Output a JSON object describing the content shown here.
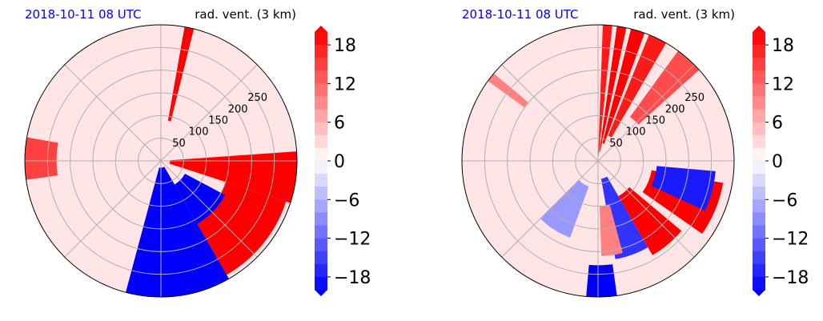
{
  "chart_data": [
    {
      "type": "heatmap",
      "projection": "polar",
      "title_left": "2018-10-11 08 UTC",
      "title_right": "rad. vent. (3 km)",
      "title_left_color": "#0000ff",
      "range_ticks": [
        "50",
        "100",
        "150",
        "200",
        "250"
      ],
      "range_values": [
        50,
        100,
        150,
        200,
        250
      ],
      "range_max": 300,
      "colorbar": {
        "ticks": [
          "18",
          "12",
          "6",
          "0",
          "−6",
          "−12",
          "−18"
        ],
        "tick_values": [
          18,
          12,
          6,
          0,
          -6,
          -12,
          -18
        ],
        "vmin": -20,
        "vmax": 20,
        "extend": "both",
        "colormap": "bwr"
      },
      "grid": true,
      "features": [
        {
          "kind": "band",
          "value": 20,
          "az": [
            10,
            12
          ],
          "r": [
            90,
            300
          ]
        },
        {
          "kind": "band",
          "value": 20,
          "az": [
            12,
            14
          ],
          "r": [
            90,
            300
          ]
        },
        {
          "kind": "sector",
          "value": 20,
          "az": [
            86,
            108
          ],
          "r": [
            20,
            300
          ]
        },
        {
          "kind": "sector",
          "value": 20,
          "az": [
            108,
            150
          ],
          "r": [
            150,
            290
          ]
        },
        {
          "kind": "sector",
          "value": -20,
          "az": [
            150,
            195
          ],
          "r": [
            15,
            300
          ]
        },
        {
          "kind": "sector",
          "value": -20,
          "az": [
            118,
            150
          ],
          "r": [
            60,
            160
          ]
        },
        {
          "kind": "sector",
          "value": 15,
          "az": [
            262,
            280
          ],
          "r": [
            230,
            300
          ]
        }
      ]
    },
    {
      "type": "heatmap",
      "projection": "polar",
      "title_left": "2018-10-11 08 UTC",
      "title_right": "rad. vent. (3 km)",
      "title_left_color": "#0000ff",
      "range_ticks": [
        "50",
        "100",
        "150",
        "200",
        "250"
      ],
      "range_values": [
        50,
        100,
        150,
        200,
        250
      ],
      "range_max": 300,
      "colorbar": {
        "ticks": [
          "18",
          "12",
          "6",
          "0",
          "−6",
          "−12",
          "−18"
        ],
        "tick_values": [
          18,
          12,
          6,
          0,
          -6,
          -12,
          -18
        ],
        "vmin": -20,
        "vmax": 20,
        "extend": "both",
        "colormap": "bwr"
      },
      "grid": true,
      "features": [
        {
          "kind": "band",
          "value": 18,
          "az": [
            2,
            6
          ],
          "r": [
            10,
            300
          ]
        },
        {
          "kind": "band",
          "value": 20,
          "az": [
            8,
            12
          ],
          "r": [
            20,
            300
          ]
        },
        {
          "kind": "band",
          "value": 20,
          "az": [
            14,
            20
          ],
          "r": [
            40,
            300
          ]
        },
        {
          "kind": "band",
          "value": 18,
          "az": [
            22,
            30
          ],
          "r": [
            60,
            300
          ]
        },
        {
          "kind": "band",
          "value": 14,
          "az": [
            36,
            48
          ],
          "r": [
            120,
            300
          ]
        },
        {
          "kind": "sector",
          "value": 20,
          "az": [
            100,
            125
          ],
          "r": [
            120,
            280
          ]
        },
        {
          "kind": "sector",
          "value": -18,
          "az": [
            95,
            115
          ],
          "r": [
            130,
            260
          ]
        },
        {
          "kind": "sector",
          "value": 20,
          "az": [
            130,
            150
          ],
          "r": [
            90,
            240
          ]
        },
        {
          "kind": "sector",
          "value": -16,
          "az": [
            150,
            170
          ],
          "r": [
            40,
            220
          ]
        },
        {
          "kind": "sector",
          "value": 10,
          "az": [
            165,
            178
          ],
          "r": [
            100,
            210
          ]
        },
        {
          "kind": "sector",
          "value": -20,
          "az": [
            172,
            185
          ],
          "r": [
            230,
            300
          ]
        },
        {
          "kind": "sector",
          "value": -8,
          "az": [
            200,
            225
          ],
          "r": [
            60,
            180
          ]
        },
        {
          "kind": "band",
          "value": 10,
          "az": [
            -54,
            -50
          ],
          "r": [
            200,
            300
          ]
        }
      ]
    }
  ]
}
